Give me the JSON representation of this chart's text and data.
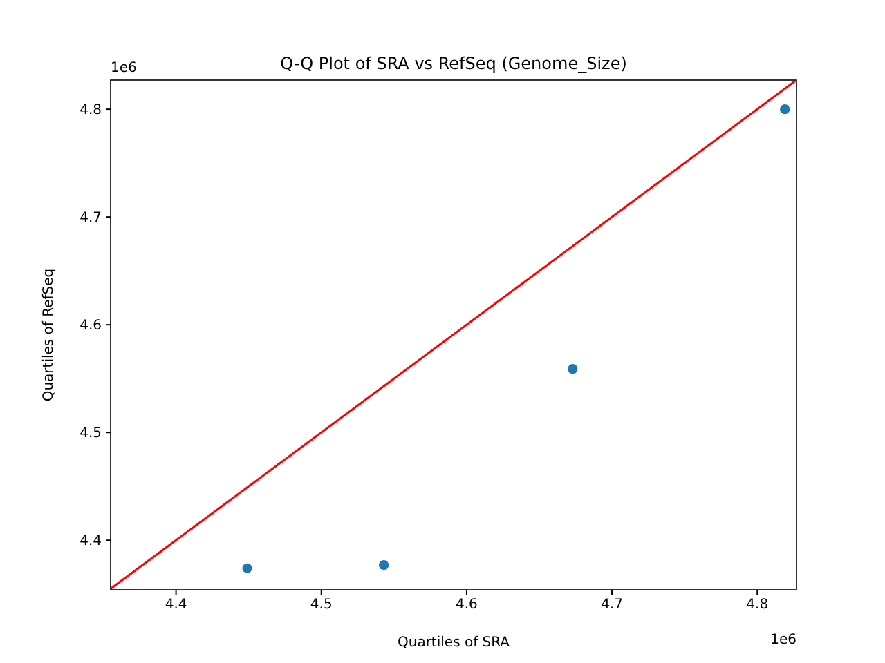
{
  "chart_data": {
    "type": "scatter",
    "title": "Q-Q Plot of SRA vs RefSeq (Genome_Size)",
    "xlabel": "Quartiles of SRA",
    "ylabel": "Quartiles of RefSeq",
    "annotations": [
      "1e6",
      "1e6"
    ],
    "series": [
      {
        "color": "#1f77b4",
        "marker": "circle",
        "x": [
          4.449,
          4.543,
          4.673,
          4.819
        ],
        "values": [
          4.374,
          4.377,
          4.559,
          4.8
        ]
      },
      {
        "type": "line",
        "color": "#ff0000",
        "marker": "none",
        "line_style": "solid",
        "x": [
          4.355,
          4.826
        ],
        "values": [
          4.355,
          4.826
        ]
      }
    ],
    "xlim": [
      4.355,
      4.827
    ],
    "ylim": [
      4.354,
      4.827
    ],
    "xticks": [
      4.4,
      4.5,
      4.6,
      4.7,
      4.8
    ],
    "yticks": [
      4.4,
      4.5,
      4.6,
      4.7,
      4.8
    ],
    "grid": false
  }
}
